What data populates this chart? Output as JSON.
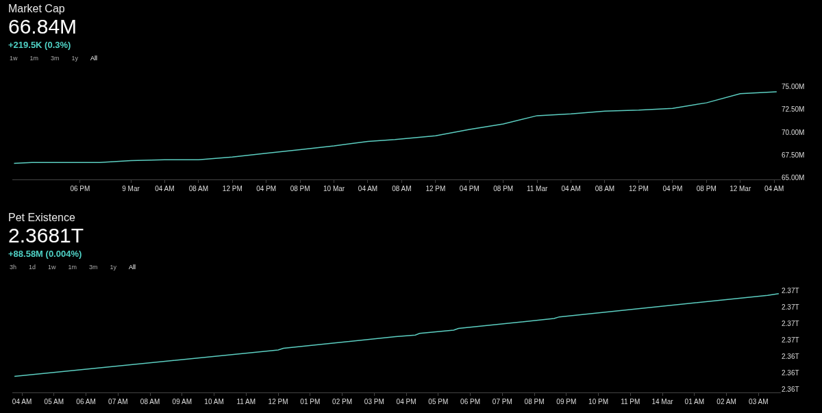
{
  "chart_data": [
    {
      "type": "line",
      "title": "Market Cap",
      "subtitle": "66.84M",
      "annotations": [
        "+219.5K (0.3%)",
        "1w",
        "1m",
        "3m",
        "1y",
        "All"
      ],
      "x": [
        "--03-08T10:12",
        "--03-08T12:18",
        "--03-08T20:18",
        "--03-09T00:00",
        "--03-09T04:00",
        "--03-09T08:00",
        "--03-09T12:00",
        "--03-09T16:00",
        "--03-09T20:00",
        "--03-10T00:00",
        "--03-10T04:00",
        "--03-10T07:12",
        "--03-10T12:00",
        "--03-10T16:00",
        "--03-10T20:00",
        "--03-11T00:00",
        "--03-11T04:00",
        "--03-11T08:00",
        "--03-11T12:00",
        "--03-11T16:00",
        "--03-11T20:00",
        "--03-12T00:00",
        "--03-12T04:18"
      ],
      "series": [
        {
          "color": "#5ccfc2",
          "values": [
            66.6,
            66.7,
            66.7,
            66.9,
            67.0,
            67.0,
            67.3,
            67.7,
            68.1,
            68.5,
            69.0,
            69.2,
            69.6,
            70.3,
            70.9,
            71.8,
            72.0,
            72.3,
            72.4,
            72.6,
            73.2,
            74.2,
            74.4
          ]
        }
      ],
      "xlim": [
        "--03-08T10:00",
        "--03-12T04:48"
      ],
      "xticks": [
        {
          "value": "--03-08T18:00",
          "label": "06 PM"
        },
        {
          "value": "--03-09T00:00",
          "label": "9 Mar"
        },
        {
          "value": "--03-09T04:00",
          "label": "04 AM"
        },
        {
          "value": "--03-09T08:00",
          "label": "08 AM"
        },
        {
          "value": "--03-09T12:00",
          "label": "12 PM"
        },
        {
          "value": "--03-09T16:00",
          "label": "04 PM"
        },
        {
          "value": "--03-09T20:00",
          "label": "08 PM"
        },
        {
          "value": "--03-10T00:00",
          "label": "10 Mar"
        },
        {
          "value": "--03-10T04:00",
          "label": "04 AM"
        },
        {
          "value": "--03-10T08:00",
          "label": "08 AM"
        },
        {
          "value": "--03-10T12:00",
          "label": "12 PM"
        },
        {
          "value": "--03-10T16:00",
          "label": "04 PM"
        },
        {
          "value": "--03-10T20:00",
          "label": "08 PM"
        },
        {
          "value": "--03-11T00:00",
          "label": "11 Mar"
        },
        {
          "value": "--03-11T04:00",
          "label": "04 AM"
        },
        {
          "value": "--03-11T08:00",
          "label": "08 AM"
        },
        {
          "value": "--03-11T12:00",
          "label": "12 PM"
        },
        {
          "value": "--03-11T16:00",
          "label": "04 PM"
        },
        {
          "value": "--03-11T20:00",
          "label": "08 PM"
        },
        {
          "value": "--03-12T00:00",
          "label": "12 Mar"
        },
        {
          "value": "--03-12T04:00",
          "label": "04 AM"
        }
      ],
      "ylim": [
        64.85,
        75
      ],
      "yticks": [
        {
          "value": 65,
          "label": "65.00M"
        },
        {
          "value": 67.5,
          "label": "67.50M"
        },
        {
          "value": 70,
          "label": "70.00M"
        },
        {
          "value": 72.5,
          "label": "72.50M"
        },
        {
          "value": 75,
          "label": "75.00M"
        }
      ]
    },
    {
      "type": "line",
      "title": "Pet Existence",
      "subtitle": "2.3681T",
      "annotations": [
        "+88.58M (0.004%)",
        "3h",
        "1d",
        "1w",
        "1m",
        "3m",
        "1y",
        "All"
      ],
      "x": [
        "--03-13T03:46",
        "--03-13T12:00",
        "--03-13T12:10",
        "--03-13T15:40",
        "--03-13T16:17",
        "--03-13T16:25",
        "--03-13T17:29",
        "--03-13T17:38",
        "--03-13T20:37",
        "--03-13T20:47",
        "--03-14T03:17",
        "--03-14T03:38"
      ],
      "series": [
        {
          "color": "#5ccfc2",
          "values": [
            2.3628,
            2.3644,
            2.3645,
            2.3652,
            2.3653,
            2.3654,
            2.3656,
            2.3657,
            2.3663,
            2.3664,
            2.3677,
            2.3678
          ]
        }
      ],
      "xlim": [
        "--03-13T03:42",
        "--03-14T03:42"
      ],
      "xticks": [
        {
          "value": "--03-13T04:00",
          "label": "04 AM"
        },
        {
          "value": "--03-13T05:00",
          "label": "05 AM"
        },
        {
          "value": "--03-13T06:00",
          "label": "06 AM"
        },
        {
          "value": "--03-13T07:00",
          "label": "07 AM"
        },
        {
          "value": "--03-13T08:00",
          "label": "08 AM"
        },
        {
          "value": "--03-13T09:00",
          "label": "09 AM"
        },
        {
          "value": "--03-13T10:00",
          "label": "10 AM"
        },
        {
          "value": "--03-13T11:00",
          "label": "11 AM"
        },
        {
          "value": "--03-13T12:00",
          "label": "12 PM"
        },
        {
          "value": "--03-13T13:00",
          "label": "01 PM"
        },
        {
          "value": "--03-13T14:00",
          "label": "02 PM"
        },
        {
          "value": "--03-13T15:00",
          "label": "03 PM"
        },
        {
          "value": "--03-13T16:00",
          "label": "04 PM"
        },
        {
          "value": "--03-13T17:00",
          "label": "05 PM"
        },
        {
          "value": "--03-13T18:00",
          "label": "06 PM"
        },
        {
          "value": "--03-13T19:00",
          "label": "07 PM"
        },
        {
          "value": "--03-13T20:00",
          "label": "08 PM"
        },
        {
          "value": "--03-13T21:00",
          "label": "09 PM"
        },
        {
          "value": "--03-13T22:00",
          "label": "10 PM"
        },
        {
          "value": "--03-13T23:00",
          "label": "11 PM"
        },
        {
          "value": "--03-14T00:00",
          "label": "14 Mar"
        },
        {
          "value": "--03-14T01:00",
          "label": "01 AM"
        },
        {
          "value": "--03-14T02:00",
          "label": "02 AM"
        },
        {
          "value": "--03-14T03:00",
          "label": "03 AM"
        }
      ],
      "ylim": [
        2.36183,
        2.368
      ],
      "yticks": [
        {
          "value": 2.362,
          "label": "2.36T"
        },
        {
          "value": 2.363,
          "label": "2.36T"
        },
        {
          "value": 2.364,
          "label": "2.36T"
        },
        {
          "value": 2.365,
          "label": "2.37T"
        },
        {
          "value": 2.366,
          "label": "2.37T"
        },
        {
          "value": 2.367,
          "label": "2.37T"
        },
        {
          "value": 2.368,
          "label": "2.37T"
        }
      ]
    }
  ]
}
